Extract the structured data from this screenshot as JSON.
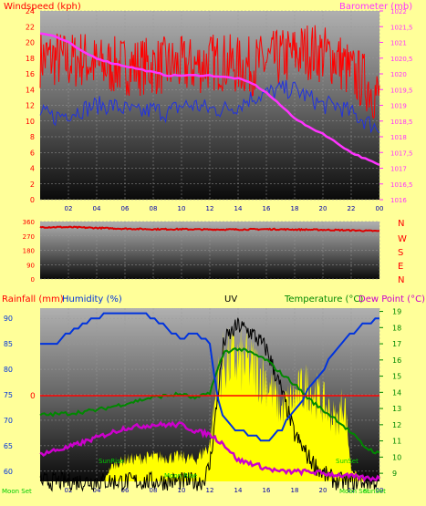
{
  "colors": {
    "background": "#ffff99",
    "wind_avg": "#2233dd",
    "wind_gust": "#ff0000",
    "barometer": "#ff33ff",
    "wind_dir": "#dd0000",
    "humidity": "#0033dd",
    "temperature": "#008800",
    "dew_point": "#cc00cc",
    "uv": "#000000",
    "solar": "#ffff00",
    "rain": "#ff0000",
    "sun_mark": "#00cc00"
  },
  "chart_data": [
    {
      "id": "wind_baro",
      "type": "line",
      "title": "",
      "left_axis": {
        "label": "Windspeed (kph)",
        "range": [
          0,
          24
        ],
        "ticks": [
          "0",
          "2",
          "4",
          "6",
          "8",
          "10",
          "12",
          "14",
          "16",
          "18",
          "20",
          "22",
          "24"
        ]
      },
      "right_axis": {
        "label": "Barometer (mb)",
        "range": [
          1016,
          1022
        ],
        "ticks": [
          "1016",
          "1016,5",
          "1017",
          "1017,5",
          "1018",
          "1018,5",
          "1019",
          "1019,5",
          "1020",
          "1020,5",
          "1021",
          "1021,5",
          "1022"
        ]
      },
      "x_ticks": [
        "02",
        "04",
        "06",
        "08",
        "10",
        "12",
        "14",
        "16",
        "18",
        "20",
        "22",
        "00"
      ],
      "series": [
        {
          "name": "",
          "key": "wind_gust",
          "axis": "left",
          "x": [
            0,
            1,
            2,
            3,
            4,
            5,
            6,
            7,
            8,
            9,
            10,
            11,
            12,
            13,
            14,
            15,
            16,
            17,
            18,
            19,
            20,
            21,
            22,
            23,
            24
          ],
          "values": [
            18,
            18,
            17.5,
            18,
            17,
            17,
            17,
            17,
            17,
            17,
            17,
            17,
            17.5,
            17.5,
            17,
            17,
            17.5,
            18,
            18.5,
            19,
            18.5,
            18,
            16,
            15,
            13
          ]
        },
        {
          "name": "",
          "key": "wind_avg",
          "axis": "left",
          "x": [
            0,
            1,
            2,
            3,
            4,
            5,
            6,
            7,
            8,
            9,
            10,
            11,
            12,
            13,
            14,
            15,
            16,
            17,
            18,
            19,
            20,
            21,
            22,
            23,
            24
          ],
          "values": [
            11,
            10.5,
            11,
            11.5,
            12,
            12,
            11.5,
            11,
            11.5,
            11,
            12,
            12,
            11.5,
            11.5,
            12,
            13,
            13.5,
            14,
            14,
            13,
            12,
            12,
            11,
            10,
            9
          ]
        },
        {
          "name": "",
          "key": "barometer",
          "axis": "right",
          "x": [
            0,
            1,
            2,
            3,
            4,
            5,
            6,
            7,
            8,
            9,
            10,
            11,
            12,
            13,
            14,
            15,
            16,
            17,
            18,
            19,
            20,
            21,
            22,
            23,
            24
          ],
          "values": [
            1021.3,
            1021.2,
            1021,
            1020.7,
            1020.5,
            1020.35,
            1020.25,
            1020.15,
            1020.05,
            1019.95,
            1019.95,
            1019.95,
            1019.95,
            1019.9,
            1019.85,
            1019.7,
            1019.4,
            1019.0,
            1018.6,
            1018.3,
            1018.1,
            1017.8,
            1017.5,
            1017.3,
            1017.1
          ]
        }
      ]
    },
    {
      "id": "wind_dir",
      "type": "line",
      "title": "",
      "left_axis": {
        "range": [
          0,
          360
        ],
        "ticks": [
          "0",
          "90",
          "180",
          "270",
          "360"
        ]
      },
      "right_labels": [
        "N",
        "W",
        "S",
        "E",
        "N"
      ],
      "series": [
        {
          "name": "",
          "key": "wind_dir",
          "x": [
            0,
            2,
            4,
            6,
            8,
            10,
            12,
            14,
            16,
            18,
            20,
            22,
            24
          ],
          "values": [
            325,
            325,
            320,
            315,
            312,
            312,
            310,
            310,
            312,
            310,
            308,
            305,
            300
          ]
        }
      ]
    },
    {
      "id": "weather",
      "type": "line",
      "labels": {
        "rainfall": "Rainfall (mm)",
        "humidity": "Humidity (%)",
        "uv": "UV",
        "temperature": "Temperature (°C)",
        "dew_point": "Dew Point (°C)"
      },
      "left_axis": {
        "range": [
          58,
          92
        ],
        "ticks": [
          "60",
          "65",
          "70",
          "75",
          "80",
          "85",
          "90"
        ]
      },
      "right_axis": {
        "range": [
          8.5,
          19.2
        ],
        "ticks": [
          "9",
          "10",
          "11",
          "12",
          "13",
          "14",
          "15",
          "16",
          "17",
          "18",
          "19"
        ]
      },
      "rain_axis": {
        "value_label": "0"
      },
      "x_ticks": [
        "02",
        "04",
        "06",
        "08",
        "10",
        "12",
        "14",
        "16",
        "18",
        "20",
        "22",
        "00"
      ],
      "annotations": [
        "Moon Set",
        "SunRise",
        "Moon Rise",
        "SunSet",
        "Moon Set",
        "SunSet"
      ],
      "series": [
        {
          "name": "",
          "key": "humidity",
          "axis": "left",
          "x": [
            0,
            1,
            2,
            3,
            4,
            5,
            6,
            7,
            8,
            9,
            10,
            11,
            12,
            12.5,
            13,
            14,
            15,
            16,
            17,
            18,
            19,
            20,
            21,
            22,
            23,
            24
          ],
          "values": [
            85,
            85,
            87,
            89,
            90,
            91,
            91,
            91,
            90,
            88,
            86,
            87,
            85,
            75,
            70,
            68,
            67,
            66,
            68,
            72,
            76,
            80,
            84,
            87,
            89,
            90
          ]
        },
        {
          "name": "",
          "key": "temperature",
          "axis": "right",
          "x": [
            0,
            2,
            4,
            6,
            8,
            10,
            11,
            12,
            13,
            14,
            15,
            16,
            17,
            18,
            19,
            20,
            21,
            22,
            23,
            24
          ],
          "values": [
            12.6,
            12.7,
            12.9,
            13.3,
            13.7,
            13.9,
            13.6,
            14,
            16.5,
            16.7,
            16.4,
            16.0,
            15.2,
            14.5,
            13.6,
            12.9,
            12.3,
            11.5,
            10.6,
            10.2
          ]
        },
        {
          "name": "",
          "key": "dew_point",
          "axis": "right",
          "x": [
            0,
            2,
            4,
            6,
            8,
            10,
            11,
            12,
            13,
            14,
            15,
            16,
            17,
            18,
            19,
            20,
            21,
            22,
            23,
            24
          ],
          "values": [
            10.2,
            10.6,
            11.2,
            11.8,
            12.0,
            12.0,
            11.6,
            11.4,
            10.8,
            9.8,
            9.6,
            9.3,
            9.1,
            9.1,
            9.1,
            9.0,
            8.9,
            8.8,
            8.7,
            8.7
          ]
        },
        {
          "name": "",
          "key": "uv",
          "axis": "uv",
          "x": [
            0,
            11.5,
            12,
            12.5,
            13,
            14,
            15,
            16,
            17,
            18,
            19,
            20,
            21,
            22,
            23,
            24
          ],
          "values": [
            0,
            0,
            0.1,
            0.5,
            0.9,
            1.0,
            0.95,
            0.85,
            0.6,
            0.3,
            0.15,
            0.05,
            0,
            0,
            0,
            0
          ]
        },
        {
          "name": "",
          "key": "solar",
          "axis": "uv",
          "x": [
            0,
            4.5,
            5,
            6,
            8,
            10,
            11,
            12,
            12.5,
            13,
            14,
            15,
            16,
            17,
            18,
            19,
            20,
            21,
            21.5,
            22,
            23,
            24
          ],
          "values": [
            0,
            0,
            0.12,
            0.18,
            0.2,
            0.2,
            0.18,
            0.3,
            0.8,
            1.0,
            1.0,
            0.95,
            0.85,
            0.6,
            0.7,
            0.8,
            0.65,
            0.5,
            0.7,
            0.1,
            0,
            0
          ]
        }
      ]
    }
  ]
}
